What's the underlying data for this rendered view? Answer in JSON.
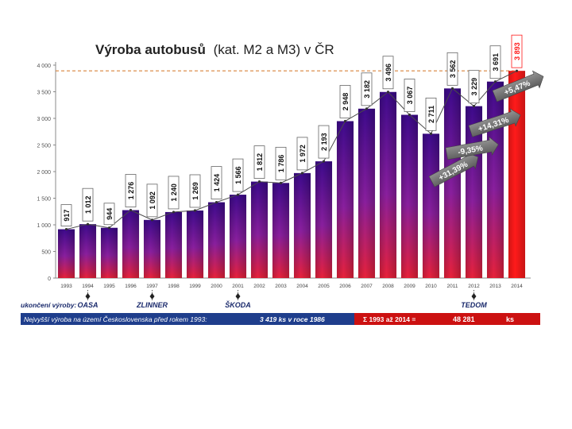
{
  "chart_data": {
    "type": "bar",
    "title": "Výroba autobusů",
    "subtitle": "(kat. M2 a M3) v ČR",
    "categories": [
      "1993",
      "1994",
      "1995",
      "1996",
      "1997",
      "1998",
      "1999",
      "2000",
      "2001",
      "2002",
      "2003",
      "2004",
      "2005",
      "2006",
      "2007",
      "2008",
      "2009",
      "2010",
      "2011",
      "2012",
      "2013",
      "2014"
    ],
    "values": [
      917,
      1012,
      944,
      1276,
      1092,
      1240,
      1269,
      1424,
      1566,
      1812,
      1786,
      1972,
      2193,
      2948,
      3182,
      3496,
      3067,
      2711,
      3562,
      3229,
      3691,
      3893
    ],
    "value_labels": [
      "917",
      "1 012",
      "944",
      "1 276",
      "1 092",
      "1 240",
      "1 269",
      "1 424",
      "1 566",
      "1 812",
      "1 786",
      "1 972",
      "2 193",
      "2 948",
      "3 182",
      "3 496",
      "3 067",
      "2 711",
      "3 562",
      "3 229",
      "3 691",
      "3 893"
    ],
    "highlight_index": 21,
    "y_ticks": [
      0,
      500,
      1000,
      1500,
      2000,
      2500,
      3000,
      3500,
      4000
    ],
    "y_tick_labels": [
      "0",
      "500",
      "1 000",
      "1 500",
      "2 000",
      "2 500",
      "3 000",
      "3 500",
      "4 000"
    ],
    "ylim": [
      0,
      4000
    ],
    "xlabel": "",
    "ylabel": "",
    "grid": false,
    "reference_line": 3893,
    "annotations": [
      {
        "text": "+31,39%",
        "index": 18
      },
      {
        "text": "-9,35%",
        "index": 19
      },
      {
        "text": "+14,31%",
        "index": 20
      },
      {
        "text": "+5,47%",
        "index": 21
      }
    ],
    "production_end": {
      "label": "ukončení výroby:",
      "markers": [
        {
          "text": "OASA",
          "index": 1
        },
        {
          "text": "ZLINNER",
          "index": 4
        },
        {
          "text": "ŠKODA",
          "index": 8
        },
        {
          "text": "TEDOM",
          "index": 19
        }
      ]
    },
    "footer": {
      "left_text": "Nejvyšší výroba na území Československa před rokem 1993:",
      "left_value": "3 419  ks v roce 1986",
      "right_text": "Σ 1993  až 2014 =",
      "right_value": "48 281",
      "right_unit": "ks"
    }
  },
  "colors": {
    "bar_top": "#3d0a8c",
    "bar_mid": "#8a1f9e",
    "bar_bottom": "#e8213a",
    "highlight": "#ff1a1a",
    "reference": "#d9823a",
    "footer_left": "#1f3e8c",
    "footer_right": "#cc1111",
    "arrow": "#6e6e6e"
  }
}
